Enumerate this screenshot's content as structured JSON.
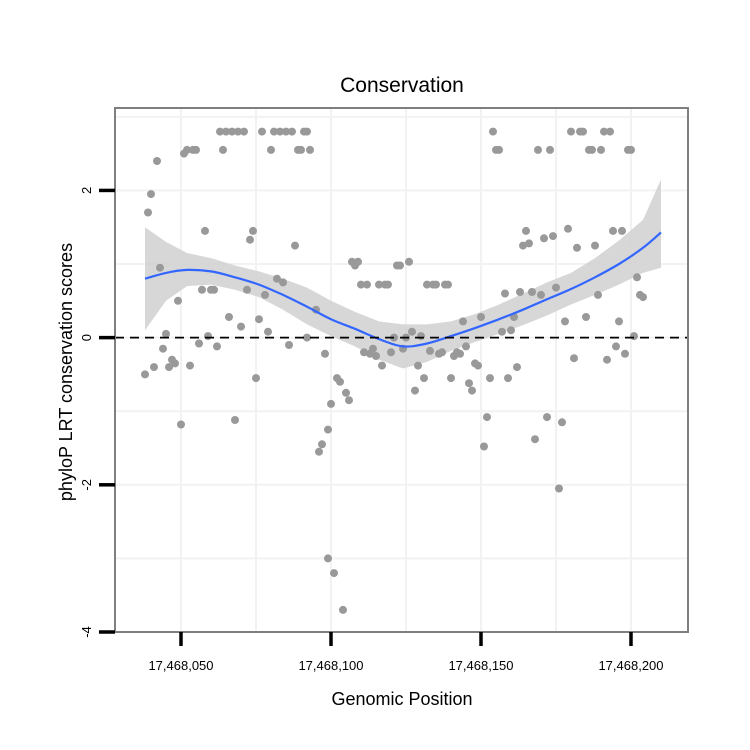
{
  "chart_data": {
    "type": "scatter",
    "title": "Conservation",
    "xlabel": "Genomic Position",
    "ylabel": "phyloP LRT conservation scores",
    "xlim": [
      17468028,
      17468219
    ],
    "ylim": [
      -4,
      3.12
    ],
    "x_ticks": [
      {
        "value": 17468050,
        "label": "17,468,050"
      },
      {
        "value": 17468100,
        "label": "17,468,100"
      },
      {
        "value": 17468150,
        "label": "17,468,150"
      },
      {
        "value": 17468200,
        "label": "17,468,200"
      }
    ],
    "y_ticks": [
      {
        "value": -4,
        "label": "-4"
      },
      {
        "value": -2,
        "label": "-2"
      },
      {
        "value": 0,
        "label": "0"
      },
      {
        "value": 2,
        "label": "2"
      }
    ],
    "reference_line": {
      "y": 0,
      "style": "dashed"
    },
    "colors": {
      "points": "#999999",
      "smooth": "#3366ff",
      "band": "#d3d3d3",
      "panel_border": "#7f7f7f",
      "grid": "#f2f2f2"
    },
    "series": [
      {
        "name": "scores",
        "points": [
          [
            17468038,
            -0.5
          ],
          [
            17468039,
            1.7
          ],
          [
            17468040,
            1.95
          ],
          [
            17468041,
            -0.4
          ],
          [
            17468042,
            2.4
          ],
          [
            17468043,
            0.95
          ],
          [
            17468044,
            -0.15
          ],
          [
            17468045,
            0.05
          ],
          [
            17468046,
            -0.4
          ],
          [
            17468047,
            -0.3
          ],
          [
            17468048,
            -0.35
          ],
          [
            17468049,
            0.5
          ],
          [
            17468050,
            -1.18
          ],
          [
            17468051,
            2.5
          ],
          [
            17468052,
            2.55
          ],
          [
            17468053,
            -0.38
          ],
          [
            17468054,
            2.55
          ],
          [
            17468055,
            2.55
          ],
          [
            17468056,
            -0.08
          ],
          [
            17468057,
            0.65
          ],
          [
            17468058,
            1.45
          ],
          [
            17468059,
            0.02
          ],
          [
            17468060,
            0.65
          ],
          [
            17468061,
            0.65
          ],
          [
            17468062,
            -0.12
          ],
          [
            17468063,
            2.8
          ],
          [
            17468064,
            2.55
          ],
          [
            17468065,
            2.8
          ],
          [
            17468066,
            0.28
          ],
          [
            17468067,
            2.8
          ],
          [
            17468068,
            -1.12
          ],
          [
            17468069,
            2.8
          ],
          [
            17468070,
            0.15
          ],
          [
            17468071,
            2.8
          ],
          [
            17468072,
            0.65
          ],
          [
            17468073,
            1.33
          ],
          [
            17468074,
            1.45
          ],
          [
            17468075,
            -0.55
          ],
          [
            17468076,
            0.25
          ],
          [
            17468077,
            2.8
          ],
          [
            17468078,
            0.58
          ],
          [
            17468079,
            0.08
          ],
          [
            17468080,
            2.55
          ],
          [
            17468081,
            2.8
          ],
          [
            17468082,
            0.8
          ],
          [
            17468083,
            2.8
          ],
          [
            17468084,
            0.75
          ],
          [
            17468085,
            2.8
          ],
          [
            17468086,
            -0.1
          ],
          [
            17468087,
            2.8
          ],
          [
            17468088,
            1.25
          ],
          [
            17468089,
            2.55
          ],
          [
            17468090,
            2.55
          ],
          [
            17468091,
            2.8
          ],
          [
            17468092,
            2.8
          ],
          [
            17468092,
            0.0
          ],
          [
            17468093,
            2.55
          ],
          [
            17468095,
            0.38
          ],
          [
            17468096,
            -1.55
          ],
          [
            17468097,
            -1.45
          ],
          [
            17468098,
            -0.22
          ],
          [
            17468099,
            -1.25
          ],
          [
            17468099,
            -3.0
          ],
          [
            17468100,
            -0.9
          ],
          [
            17468101,
            -3.2
          ],
          [
            17468102,
            -0.55
          ],
          [
            17468103,
            -0.6
          ],
          [
            17468104,
            -3.7
          ],
          [
            17468105,
            -0.75
          ],
          [
            17468106,
            -0.85
          ],
          [
            17468107,
            1.03
          ],
          [
            17468108,
            0.98
          ],
          [
            17468109,
            1.03
          ],
          [
            17468110,
            0.72
          ],
          [
            17468111,
            -0.2
          ],
          [
            17468112,
            0.72
          ],
          [
            17468113,
            -0.22
          ],
          [
            17468114,
            -0.15
          ],
          [
            17468115,
            -0.25
          ],
          [
            17468116,
            0.72
          ],
          [
            17468117,
            -0.38
          ],
          [
            17468118,
            0.72
          ],
          [
            17468119,
            0.72
          ],
          [
            17468120,
            -0.2
          ],
          [
            17468121,
            0.0
          ],
          [
            17468122,
            0.98
          ],
          [
            17468123,
            0.98
          ],
          [
            17468124,
            -0.15
          ],
          [
            17468125,
            0.0
          ],
          [
            17468126,
            1.03
          ],
          [
            17468127,
            0.08
          ],
          [
            17468128,
            -0.72
          ],
          [
            17468129,
            -0.38
          ],
          [
            17468130,
            0.02
          ],
          [
            17468131,
            -0.55
          ],
          [
            17468132,
            0.72
          ],
          [
            17468133,
            -0.18
          ],
          [
            17468134,
            0.72
          ],
          [
            17468135,
            0.72
          ],
          [
            17468136,
            -0.22
          ],
          [
            17468137,
            -0.2
          ],
          [
            17468138,
            0.72
          ],
          [
            17468139,
            0.72
          ],
          [
            17468140,
            -0.55
          ],
          [
            17468141,
            -0.25
          ],
          [
            17468142,
            -0.2
          ],
          [
            17468143,
            -0.22
          ],
          [
            17468144,
            0.22
          ],
          [
            17468145,
            -0.12
          ],
          [
            17468146,
            -0.62
          ],
          [
            17468147,
            -0.72
          ],
          [
            17468148,
            -0.35
          ],
          [
            17468149,
            -0.38
          ],
          [
            17468150,
            0.28
          ],
          [
            17468151,
            -1.48
          ],
          [
            17468152,
            -1.08
          ],
          [
            17468153,
            -0.55
          ],
          [
            17468154,
            2.8
          ],
          [
            17468155,
            2.55
          ],
          [
            17468156,
            2.55
          ],
          [
            17468157,
            0.08
          ],
          [
            17468158,
            0.6
          ],
          [
            17468159,
            -0.55
          ],
          [
            17468160,
            0.1
          ],
          [
            17468161,
            0.28
          ],
          [
            17468162,
            -0.4
          ],
          [
            17468163,
            0.62
          ],
          [
            17468164,
            1.25
          ],
          [
            17468165,
            1.45
          ],
          [
            17468166,
            1.28
          ],
          [
            17468167,
            0.62
          ],
          [
            17468168,
            -1.38
          ],
          [
            17468169,
            2.55
          ],
          [
            17468170,
            0.58
          ],
          [
            17468171,
            1.35
          ],
          [
            17468172,
            -1.08
          ],
          [
            17468173,
            2.55
          ],
          [
            17468174,
            1.38
          ],
          [
            17468175,
            0.68
          ],
          [
            17468176,
            -2.05
          ],
          [
            17468177,
            -1.15
          ],
          [
            17468178,
            0.22
          ],
          [
            17468179,
            1.48
          ],
          [
            17468180,
            2.8
          ],
          [
            17468181,
            -0.28
          ],
          [
            17468182,
            1.22
          ],
          [
            17468183,
            2.8
          ],
          [
            17468184,
            2.8
          ],
          [
            17468185,
            0.28
          ],
          [
            17468186,
            2.55
          ],
          [
            17468187,
            2.55
          ],
          [
            17468188,
            1.25
          ],
          [
            17468189,
            0.58
          ],
          [
            17468190,
            2.55
          ],
          [
            17468191,
            2.8
          ],
          [
            17468192,
            -0.3
          ],
          [
            17468193,
            2.8
          ],
          [
            17468194,
            1.45
          ],
          [
            17468195,
            -0.12
          ],
          [
            17468196,
            0.22
          ],
          [
            17468197,
            1.45
          ],
          [
            17468198,
            -0.22
          ],
          [
            17468199,
            2.55
          ],
          [
            17468200,
            2.55
          ],
          [
            17468201,
            0.02
          ],
          [
            17468202,
            0.82
          ],
          [
            17468203,
            0.58
          ],
          [
            17468204,
            0.55
          ]
        ]
      }
    ],
    "smooth_fit": {
      "x": [
        17468038,
        17468045,
        17468052,
        17468060,
        17468068,
        17468076,
        17468084,
        17468092,
        17468100,
        17468108,
        17468116,
        17468124,
        17468132,
        17468140,
        17468148,
        17468156,
        17468164,
        17468172,
        17468180,
        17468188,
        17468196,
        17468204,
        17468210
      ],
      "y": [
        0.8,
        0.88,
        0.92,
        0.9,
        0.82,
        0.72,
        0.58,
        0.42,
        0.25,
        0.12,
        -0.02,
        -0.12,
        -0.08,
        0.02,
        0.13,
        0.25,
        0.38,
        0.52,
        0.66,
        0.82,
        1.0,
        1.22,
        1.43
      ],
      "lower": [
        0.1,
        0.5,
        0.7,
        0.72,
        0.65,
        0.55,
        0.38,
        0.18,
        0.02,
        -0.12,
        -0.3,
        -0.42,
        -0.33,
        -0.18,
        -0.06,
        0.05,
        0.17,
        0.3,
        0.45,
        0.58,
        0.72,
        0.88,
        0.95
      ],
      "upper": [
        1.5,
        1.3,
        1.15,
        1.08,
        0.98,
        0.9,
        0.8,
        0.68,
        0.5,
        0.35,
        0.22,
        0.18,
        0.18,
        0.22,
        0.32,
        0.45,
        0.6,
        0.75,
        0.88,
        1.08,
        1.32,
        1.6,
        2.15
      ]
    }
  }
}
